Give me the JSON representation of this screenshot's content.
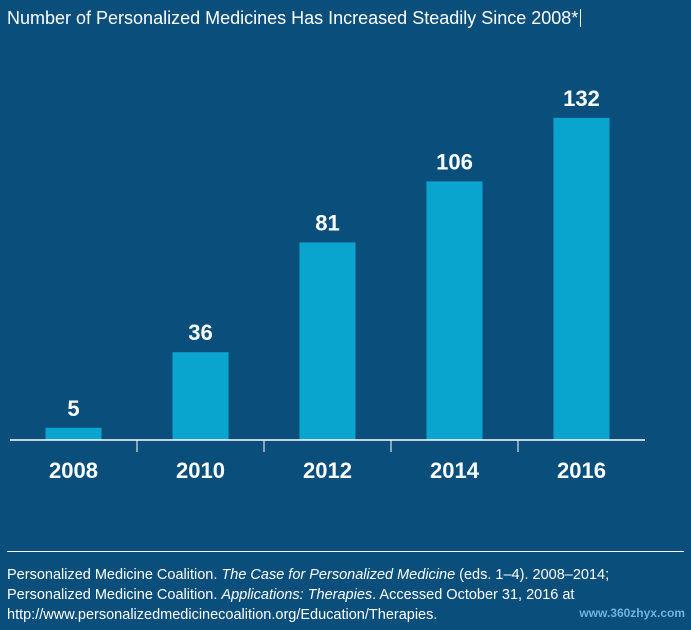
{
  "chart_data": {
    "type": "bar",
    "title": "Number of Personalized Medicines Has Increased Steadily Since 2008*",
    "categories": [
      "2008",
      "2010",
      "2012",
      "2014",
      "2016"
    ],
    "values": [
      5,
      36,
      81,
      106,
      132
    ],
    "xlabel": "",
    "ylabel": "",
    "ylim": [
      0,
      150
    ],
    "grid": false,
    "legend": "none",
    "bar_color": "#0aa5cf",
    "axis_color": "#ffffff",
    "data_labels": [
      "5",
      "36",
      "81",
      "106",
      "132"
    ]
  },
  "source": {
    "part1": "Personalized Medicine Coalition. ",
    "book1": "The Case for Personalized Medicine",
    "part2": " (eds. 1–4). 2008–2014; Personalized Medicine Coalition. ",
    "book2": "Applications: Therapies",
    "part3": ". Accessed October 31, 2016 at http://www.personalizedmedicinecoalition.org/Education/Therapies."
  },
  "watermark": "www.360zhyx.com",
  "colors": {
    "background": "#0a4f7c",
    "bar": "#0aa5cf",
    "text": "#ffffff"
  }
}
